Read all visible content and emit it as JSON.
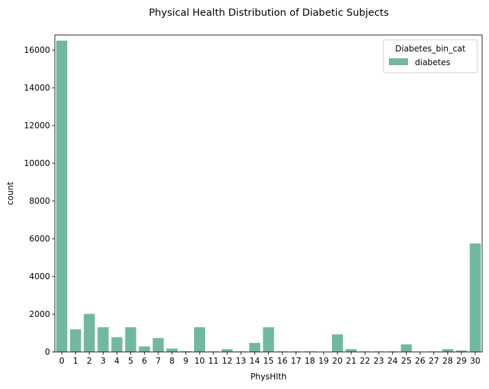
{
  "chart_data": {
    "type": "bar",
    "title": "Physical Health Distribution of Diabetic Subjects",
    "xlabel": "PhysHlth",
    "ylabel": "count",
    "ylim": [
      0,
      16800
    ],
    "yticks": [
      0,
      2000,
      4000,
      6000,
      8000,
      10000,
      12000,
      14000,
      16000
    ],
    "categories": [
      "0",
      "1",
      "2",
      "3",
      "4",
      "5",
      "6",
      "7",
      "8",
      "9",
      "10",
      "11",
      "12",
      "13",
      "14",
      "15",
      "16",
      "17",
      "18",
      "19",
      "20",
      "21",
      "22",
      "23",
      "24",
      "25",
      "26",
      "27",
      "28",
      "29",
      "30"
    ],
    "series": [
      {
        "name": "diabetes",
        "color": "#72b8a0",
        "values": [
          16500,
          1200,
          2020,
          1310,
          780,
          1310,
          290,
          740,
          180,
          40,
          1310,
          30,
          150,
          30,
          480,
          1310,
          30,
          30,
          30,
          10,
          930,
          150,
          30,
          30,
          30,
          400,
          20,
          30,
          150,
          80,
          5750
        ]
      }
    ],
    "legend": {
      "title": "Diabetes_bin_cat",
      "position": "top-right"
    },
    "grid": false
  }
}
